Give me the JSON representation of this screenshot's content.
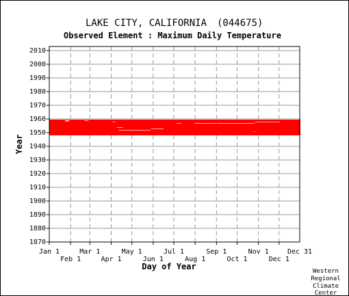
{
  "header": {
    "station": "LAKE CITY, CALIFORNIA",
    "station_id": "(044675)",
    "element": "Observed Element : Maximum Daily Temperature"
  },
  "credit": [
    "Western",
    "Regional",
    "Climate",
    "Center"
  ],
  "colors": {
    "data": "#ff0000",
    "grid": "#999999",
    "axis": "#000000"
  },
  "chart_data": {
    "type": "bar",
    "title": "Observed Element : Maximum Daily Temperature",
    "xlabel": "Day of Year",
    "ylabel": "Year",
    "ylim": [
      1870,
      2010
    ],
    "xlim": [
      1,
      365
    ],
    "grid": true,
    "x_ticks_row1": [
      "Jan 1",
      "Mar 1",
      "May 1",
      "Jul 1",
      "Sep 1",
      "Nov 1",
      "Dec 31"
    ],
    "x_ticks_row2": [
      "Feb 1",
      "Apr 1",
      "Jun 1",
      "Aug 1",
      "Oct 1",
      "Dec 1"
    ],
    "y_ticks": [
      1870,
      1880,
      1890,
      1900,
      1910,
      1920,
      1930,
      1940,
      1950,
      1960,
      1970,
      1980,
      1990,
      2000,
      2010
    ],
    "series": [
      {
        "name": "",
        "description_segments": [
          {
            "year_start": 1948,
            "year_end": 1959,
            "day_start": 1,
            "day_end": 365
          }
        ],
        "gaps": [
          {
            "day_start": 1,
            "day_end": 365,
            "year_start": 1959,
            "year_end": 1960
          },
          {
            "day_start": 24,
            "day_end": 30,
            "year_start": 1957,
            "year_end": 1959
          },
          {
            "day_start": 52,
            "day_end": 58,
            "year_start": 1958,
            "year_end": 1959
          },
          {
            "day_start": 99,
            "day_end": 108,
            "year_start": 1953,
            "year_end": 1954
          },
          {
            "day_start": 93,
            "day_end": 97,
            "year_start": 1957,
            "year_end": 1958
          },
          {
            "day_start": 102,
            "day_end": 148,
            "year_start": 1951,
            "year_end": 1952
          },
          {
            "day_start": 149,
            "day_end": 167,
            "year_start": 1952,
            "year_end": 1953
          },
          {
            "day_start": 186,
            "day_end": 193,
            "year_start": 1956,
            "year_end": 1957
          },
          {
            "day_start": 212,
            "day_end": 243,
            "year_start": 1956,
            "year_end": 1957
          },
          {
            "day_start": 244,
            "day_end": 299,
            "year_start": 1956,
            "year_end": 1957
          },
          {
            "day_start": 300,
            "day_end": 336,
            "year_start": 1957,
            "year_end": 1958
          },
          {
            "day_start": 344,
            "day_end": 350,
            "year_start": 1947,
            "year_end": 1948
          },
          {
            "day_start": 298,
            "day_end": 300,
            "year_start": 1950,
            "year_end": 1951
          }
        ]
      }
    ]
  }
}
